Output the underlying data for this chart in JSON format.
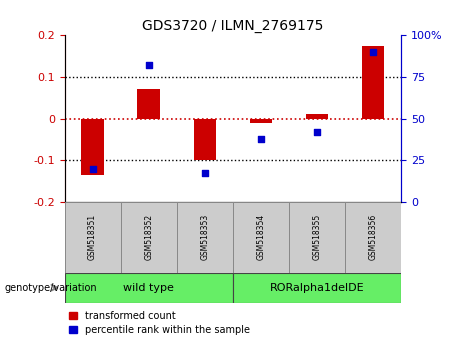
{
  "title": "GDS3720 / ILMN_2769175",
  "samples": [
    "GSM518351",
    "GSM518352",
    "GSM518353",
    "GSM518354",
    "GSM518355",
    "GSM518356"
  ],
  "bar_values": [
    -0.135,
    0.07,
    -0.1,
    -0.01,
    0.01,
    0.175
  ],
  "scatter_values": [
    20,
    82,
    17,
    38,
    42,
    90
  ],
  "ylim_left": [
    -0.2,
    0.2
  ],
  "ylim_right": [
    0,
    100
  ],
  "yticks_left": [
    -0.2,
    -0.1,
    0,
    0.1,
    0.2
  ],
  "yticks_right": [
    0,
    25,
    50,
    75,
    100
  ],
  "bar_color": "#cc0000",
  "scatter_color": "#0000cc",
  "zero_line_color": "#cc0000",
  "group_bg_color": "#66ee66",
  "sample_bg_color": "#cccccc",
  "legend_bar_label": "transformed count",
  "legend_scatter_label": "percentile rank within the sample",
  "genotype_label": "genotype/variation",
  "wild_type_label": "wild type",
  "roraplha_label": "RORalpha1delDE",
  "figsize": [
    4.61,
    3.54
  ],
  "dpi": 100
}
